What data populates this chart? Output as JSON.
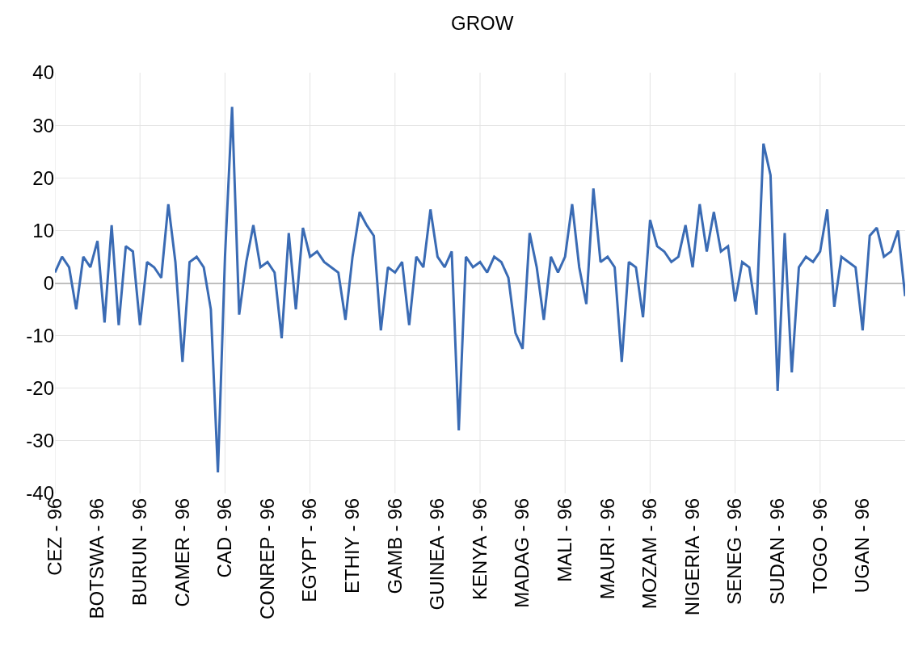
{
  "chart_data": {
    "type": "line",
    "title": "GROW",
    "categories": [
      "CEZ - 96",
      null,
      null,
      null,
      null,
      null,
      "BOTSWA - 96",
      null,
      null,
      null,
      null,
      null,
      "BURUN - 96",
      null,
      null,
      null,
      null,
      null,
      "CAMER - 96",
      null,
      null,
      null,
      null,
      null,
      "CAD - 96",
      null,
      null,
      null,
      null,
      null,
      "CONREP - 96",
      null,
      null,
      null,
      null,
      null,
      "EGYPT - 96",
      null,
      null,
      null,
      null,
      null,
      "ETHIY - 96",
      null,
      null,
      null,
      null,
      null,
      "GAMB - 96",
      null,
      null,
      null,
      null,
      null,
      "GUINEA - 96",
      null,
      null,
      null,
      null,
      null,
      "KENYA - 96",
      null,
      null,
      null,
      null,
      null,
      "MADAG - 96",
      null,
      null,
      null,
      null,
      null,
      "MALI - 96",
      null,
      null,
      null,
      null,
      null,
      "MAURI - 96",
      null,
      null,
      null,
      null,
      null,
      "MOZAM - 96",
      null,
      null,
      null,
      null,
      null,
      "NIGERIA - 96",
      null,
      null,
      null,
      null,
      null,
      "SENEG - 96",
      null,
      null,
      null,
      null,
      null,
      "SUDAN - 96",
      null,
      null,
      null,
      null,
      null,
      "TOGO - 96",
      null,
      null,
      null,
      null,
      null,
      "UGAN - 96",
      null,
      null,
      null,
      null,
      null,
      null
    ],
    "series": [
      {
        "color": "#3a6bb4",
        "values": [
          2,
          5,
          3,
          -5,
          5,
          3,
          8,
          -7.5,
          11,
          -8,
          7,
          6,
          -8,
          4,
          3,
          1,
          15,
          4,
          -15,
          4,
          5,
          3,
          -5,
          -36,
          5,
          33.5,
          -6,
          4,
          11,
          3,
          4,
          2,
          -10.5,
          9.5,
          -5,
          10.5,
          5,
          6,
          4,
          3,
          2,
          -7,
          5,
          13.5,
          11,
          9,
          -9,
          3,
          2,
          4,
          -8,
          5,
          3,
          14,
          5,
          3,
          6,
          -28,
          5,
          3,
          4,
          2,
          5,
          4,
          1,
          -9.5,
          -12.5,
          9.5,
          3,
          -7,
          5,
          2,
          5,
          15,
          3,
          -4,
          18,
          4,
          5,
          3,
          -15,
          4,
          3,
          -6.5,
          12,
          7,
          6,
          4,
          5,
          11,
          3,
          15,
          6,
          13.5,
          6,
          7,
          -3.5,
          4,
          3,
          -6,
          26.5,
          20.5,
          -20.5,
          9.5,
          -17,
          3,
          5,
          4,
          6,
          14,
          -4.5,
          5,
          4,
          3,
          -9,
          9,
          10.5,
          5,
          6,
          10,
          -2.5
        ]
      }
    ],
    "ylim": [
      -40,
      40
    ],
    "yticks": [
      -40,
      -30,
      -20,
      -10,
      0,
      10,
      20,
      30,
      40
    ],
    "grid": true,
    "marker": "none",
    "line_style": "solid"
  }
}
